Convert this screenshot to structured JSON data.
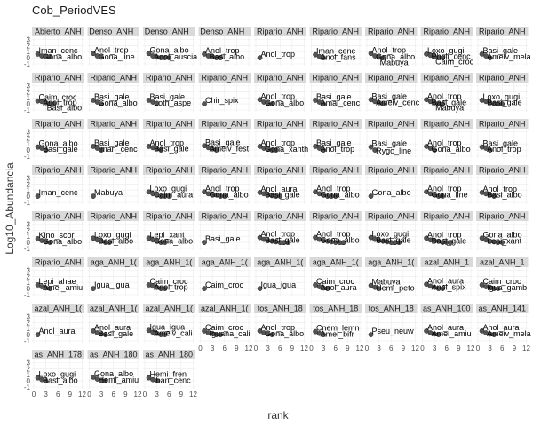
{
  "chart_data": {
    "type": "scatter",
    "title": "Cob_PeriodVES",
    "xlabel": "rank",
    "ylabel": "Log10_Abundancia",
    "x_ticks": [
      0,
      3,
      6,
      9,
      12
    ],
    "y_ticks": [
      -1,
      0,
      1,
      2,
      3
    ],
    "xlim": [
      0,
      12
    ],
    "ylim": [
      -1,
      3.2
    ],
    "point_color": "#555555",
    "strip_fill": "#d9d9d9",
    "panel_fill": "#ffffff",
    "grid": true,
    "panels": [
      {
        "strip": "Abierto_ANH",
        "labels": [
          "Iman_cenc",
          "Gona_albo"
        ],
        "x": [
          1,
          2,
          3,
          4
        ],
        "y": [
          0.6,
          0.3,
          0.2,
          0.2
        ]
      },
      {
        "strip": "Denso_ANH_",
        "labels": [
          "Anol_trop",
          "Gona_line"
        ],
        "x": [
          1,
          2,
          3
        ],
        "y": [
          0.7,
          0.3,
          0.1
        ]
      },
      {
        "strip": "Denso_ANH_",
        "labels": [
          "Gona_albo",
          "Anol_auscia"
        ],
        "x": [
          1,
          2,
          3,
          4,
          5,
          6
        ],
        "y": [
          0.7,
          0.3,
          0.1,
          0,
          0,
          0
        ]
      },
      {
        "strip": "Denso_ANH_",
        "labels": [
          "Anol_trop",
          "Basi_albo"
        ],
        "x": [
          1,
          2,
          3,
          4,
          5
        ],
        "y": [
          0.6,
          0.3,
          0.2,
          0,
          0
        ]
      },
      {
        "strip": "Ripario_ANH",
        "labels": [
          "Anol_trop"
        ],
        "x": [
          1
        ],
        "y": [
          0
        ]
      },
      {
        "strip": "Ripario_ANH",
        "labels": [
          "Iman_cenc",
          "Anol_fans"
        ],
        "x": [
          1,
          2,
          3
        ],
        "y": [
          0.5,
          0.2,
          0
        ]
      },
      {
        "strip": "Ripario_ANH",
        "labels": [
          "Anol_trop",
          "Gona_albo",
          "Mabuya"
        ],
        "x": [
          1,
          2,
          3,
          4
        ],
        "y": [
          0.7,
          0.3,
          0.1,
          0
        ]
      },
      {
        "strip": "Ripario_ANH",
        "labels": [
          "Loxo_gugi",
          "Pholi_cenc",
          "Caim_croc"
        ],
        "x": [
          1,
          2,
          3,
          4,
          5
        ],
        "y": [
          0.6,
          0.4,
          0.2,
          0,
          0
        ]
      },
      {
        "strip": "Ripario_ANH",
        "labels": [
          "Basi_gale",
          "Ameiv_mela"
        ],
        "x": [
          1,
          2,
          3
        ],
        "y": [
          0.6,
          0.3,
          0
        ]
      },
      {
        "strip": "Ripario_ANH",
        "labels": [
          "Caim_croc",
          "Anol_trop",
          "Basi_albo"
        ],
        "x": [
          1,
          2,
          3,
          4,
          5
        ],
        "y": [
          0.5,
          0.4,
          0.2,
          0,
          0
        ]
      },
      {
        "strip": "Ripario_ANH",
        "labels": [
          "Basi_gale",
          "Gona_albo"
        ],
        "x": [
          1,
          2,
          3
        ],
        "y": [
          0.6,
          0.3,
          0
        ]
      },
      {
        "strip": "Ripario_ANH",
        "labels": [
          "Basi_gale",
          "Loth_aspe"
        ],
        "x": [
          1,
          2,
          3
        ],
        "y": [
          0.6,
          0.3,
          0.1
        ]
      },
      {
        "strip": "Ripario_ANH",
        "labels": [
          "Chir_spix"
        ],
        "x": [
          1
        ],
        "y": [
          0
        ]
      },
      {
        "strip": "Ripario_ANH",
        "labels": [
          "Anol_trop",
          "Gona_albo"
        ],
        "x": [
          1,
          2,
          3,
          4
        ],
        "y": [
          0.7,
          0.3,
          0.1,
          0
        ]
      },
      {
        "strip": "Ripario_ANH",
        "labels": [
          "Basi_gale",
          "Amal_cenc"
        ],
        "x": [
          1,
          2,
          3
        ],
        "y": [
          0.6,
          0.3,
          0
        ]
      },
      {
        "strip": "Ripario_ANH",
        "labels": [
          "Basi_gale",
          "Ameiv_cenc"
        ],
        "x": [
          1,
          2,
          3,
          4
        ],
        "y": [
          0.7,
          0.4,
          0.2,
          0
        ]
      },
      {
        "strip": "Ripario_ANH",
        "labels": [
          "Anol_trop",
          "Basi_gale",
          "Mabuya"
        ],
        "x": [
          1,
          2,
          3,
          4,
          5
        ],
        "y": [
          0.7,
          0.4,
          0.2,
          0,
          0
        ]
      },
      {
        "strip": "Ripario_ANH",
        "labels": [
          "Loxo_gugi",
          "Basi_gale"
        ],
        "x": [
          1,
          2,
          3,
          4,
          5,
          6
        ],
        "y": [
          0.6,
          0.4,
          0.2,
          0,
          0,
          0
        ]
      },
      {
        "strip": "Ripario_ANH",
        "labels": [
          "Gona_albo",
          "Basi_gale"
        ],
        "x": [
          1,
          2,
          3
        ],
        "y": [
          0.5,
          0.3,
          0
        ]
      },
      {
        "strip": "Ripario_ANH",
        "labels": [
          "Basi_gale",
          "Iman_cenc"
        ],
        "x": [
          1,
          2,
          3
        ],
        "y": [
          0.6,
          0.3,
          0
        ]
      },
      {
        "strip": "Ripario_ANH",
        "labels": [
          "Anol_trop",
          "Basi_gale"
        ],
        "x": [
          1,
          2,
          3,
          4
        ],
        "y": [
          0.6,
          0.4,
          0.2,
          0
        ]
      },
      {
        "strip": "Ripario_ANH",
        "labels": [
          "Basi_gale",
          "Ameiv_fest"
        ],
        "x": [
          1,
          2,
          3,
          4
        ],
        "y": [
          0.7,
          0.4,
          0.2,
          0
        ]
      },
      {
        "strip": "Ripario_ANH",
        "labels": [
          "Anol_trop",
          "Gona_xanth"
        ],
        "x": [
          1,
          2,
          3,
          4,
          5
        ],
        "y": [
          0.6,
          0.3,
          0.2,
          0,
          0
        ]
      },
      {
        "strip": "Ripario_ANH",
        "labels": [
          "Basi_gale",
          "Anol_trop"
        ],
        "x": [
          1,
          2,
          3
        ],
        "y": [
          0.6,
          0.3,
          0
        ]
      },
      {
        "strip": "Ripario_ANH",
        "labels": [
          "Basi_gale",
          "Rygo_line"
        ],
        "x": [
          1,
          2
        ],
        "y": [
          0.5,
          0
        ]
      },
      {
        "strip": "Ripario_ANH",
        "labels": [
          "Anol_trop",
          "Gona_albo"
        ],
        "x": [
          1,
          2,
          3
        ],
        "y": [
          0.6,
          0.3,
          0
        ]
      },
      {
        "strip": "Ripario_ANH",
        "labels": [
          "Basi_gale",
          "Anol_trop"
        ],
        "x": [
          1,
          2,
          3
        ],
        "y": [
          0.5,
          0.3,
          0
        ]
      },
      {
        "strip": "Ripario_ANH",
        "labels": [
          "Iman_cenc"
        ],
        "x": [
          1
        ],
        "y": [
          0
        ]
      },
      {
        "strip": "Ripario_ANH",
        "labels": [
          "Mabuya"
        ],
        "x": [
          1
        ],
        "y": [
          0
        ]
      },
      {
        "strip": "Ripario_ANH",
        "labels": [
          "Loxo_gugi",
          "Caim_aura"
        ],
        "x": [
          1,
          2,
          3,
          4,
          5,
          6
        ],
        "y": [
          0.7,
          0.4,
          0.2,
          0,
          0,
          0
        ]
      },
      {
        "strip": "Ripario_ANH",
        "labels": [
          "Anol_trop",
          "Gona_albo"
        ],
        "x": [
          1,
          2,
          3,
          4,
          5,
          6
        ],
        "y": [
          0.7,
          0.4,
          0.3,
          0.2,
          0,
          0
        ]
      },
      {
        "strip": "Ripario_ANH",
        "labels": [
          "Anol_aura",
          "Basi_gale"
        ],
        "x": [
          1,
          2,
          3,
          4,
          5,
          6
        ],
        "y": [
          0.6,
          0.4,
          0.2,
          0.1,
          0,
          0
        ]
      },
      {
        "strip": "Ripario_ANH",
        "labels": [
          "Anol_trop",
          "Gona_albo"
        ],
        "x": [
          1,
          2,
          3,
          4,
          5,
          6
        ],
        "y": [
          0.7,
          0.4,
          0.2,
          0,
          0,
          0
        ]
      },
      {
        "strip": "Ripario_ANH",
        "labels": [
          "Gona_albo"
        ],
        "x": [
          1
        ],
        "y": [
          0
        ]
      },
      {
        "strip": "Ripario_ANH",
        "labels": [
          "Anol_trop",
          "Gona_line"
        ],
        "x": [
          1,
          2,
          3,
          4,
          5
        ],
        "y": [
          0.7,
          0.4,
          0.2,
          0,
          0
        ]
      },
      {
        "strip": "Ripario_ANH",
        "labels": [
          "Anol_trop",
          "Basi_albo"
        ],
        "x": [
          1,
          2,
          3,
          4
        ],
        "y": [
          0.6,
          0.4,
          0.2,
          0
        ]
      },
      {
        "strip": "Ripario_ANH",
        "labels": [
          "Kino_scor",
          "Gona_albo"
        ],
        "x": [
          1,
          2,
          3,
          4
        ],
        "y": [
          0.6,
          0.3,
          0.1,
          0
        ]
      },
      {
        "strip": "Ripario_ANH",
        "labels": [
          "Loxo_gugi",
          "Basi_albo"
        ],
        "x": [
          1,
          2,
          3,
          4,
          5
        ],
        "y": [
          0.7,
          0.4,
          0.2,
          0,
          0
        ]
      },
      {
        "strip": "Ripario_ANH",
        "labels": [
          "Lepi_xant",
          "Gona_albo"
        ],
        "x": [
          1,
          2,
          3,
          4,
          5
        ],
        "y": [
          0.7,
          0.4,
          0.2,
          0,
          0
        ]
      },
      {
        "strip": "Ripario_ANH",
        "labels": [
          "Basi_gale"
        ],
        "x": [
          1
        ],
        "y": [
          0
        ]
      },
      {
        "strip": "Ripario_ANH",
        "labels": [
          "Anol_trop",
          "Basi_gale"
        ],
        "x": [
          1,
          2,
          3,
          4,
          5,
          6,
          7,
          8
        ],
        "y": [
          0.8,
          0.5,
          0.3,
          0.2,
          0.1,
          0,
          0,
          0
        ]
      },
      {
        "strip": "Ripario_ANH",
        "labels": [
          "Anol_trop",
          "Gona_albo"
        ],
        "x": [
          1,
          2,
          3,
          4,
          5,
          6,
          7,
          8
        ],
        "y": [
          0.8,
          0.5,
          0.3,
          0.2,
          0.1,
          0,
          0,
          0
        ]
      },
      {
        "strip": "Ripario_ANH",
        "labels": [
          "Loxo_gugi",
          "Basi_gale"
        ],
        "x": [
          1,
          2,
          3,
          4,
          5,
          6,
          7,
          8
        ],
        "y": [
          0.8,
          0.5,
          0.3,
          0.2,
          0.1,
          0,
          0,
          0
        ]
      },
      {
        "strip": "Ripario_ANH",
        "labels": [
          "Anol_trop",
          "Basi_gale"
        ],
        "x": [
          1,
          2,
          3,
          4,
          5,
          6,
          7
        ],
        "y": [
          0.7,
          0.4,
          0.3,
          0.2,
          0,
          0,
          0
        ]
      },
      {
        "strip": "Ripario_ANH",
        "labels": [
          "Gona_albo",
          "Lepi_xant"
        ],
        "x": [
          1,
          2,
          3,
          4,
          5,
          6
        ],
        "y": [
          0.7,
          0.4,
          0.2,
          0.1,
          0,
          0
        ]
      },
      {
        "strip": "Ripario_ANH",
        "labels": [
          "Lepi_ahae",
          "Amei_amiu"
        ],
        "x": [
          1,
          2,
          3,
          4
        ],
        "y": [
          0.6,
          0.3,
          0.1,
          0
        ]
      },
      {
        "strip": "aga_ANH_1(",
        "labels": [
          "Igua_igua"
        ],
        "x": [
          1
        ],
        "y": [
          0
        ]
      },
      {
        "strip": "aga_ANH_1(",
        "labels": [
          "Caim_croc",
          "Anol_trop"
        ],
        "x": [
          1,
          2,
          3,
          4,
          5
        ],
        "y": [
          0.6,
          0.4,
          0.2,
          0,
          0
        ]
      },
      {
        "strip": "aga_ANH_1(",
        "labels": [
          "Caim_croc"
        ],
        "x": [
          1
        ],
        "y": [
          0
        ]
      },
      {
        "strip": "aga_ANH_1(",
        "labels": [
          "Igua_igua"
        ],
        "x": [
          1
        ],
        "y": [
          0
        ]
      },
      {
        "strip": "aga_ANH_1(",
        "labels": [
          "Caim_croc",
          "Anol_aura"
        ],
        "x": [
          1,
          2,
          3,
          4
        ],
        "y": [
          0.6,
          0.3,
          0.1,
          0
        ]
      },
      {
        "strip": "aga_ANH_1(",
        "labels": [
          "Mabuya",
          "Hemi_peto"
        ],
        "x": [
          1,
          2,
          3
        ],
        "y": [
          0.5,
          0.2,
          0
        ]
      },
      {
        "strip": "azal_ANH_1",
        "labels": [
          "Anol_aura",
          "Anol_spix"
        ],
        "x": [
          1,
          2,
          3,
          4,
          5
        ],
        "y": [
          0.7,
          0.4,
          0.2,
          0,
          0
        ]
      },
      {
        "strip": "azal_ANH_1",
        "labels": [
          "Caim_croc",
          "Igua_gamb"
        ],
        "x": [
          1,
          2,
          3,
          4,
          5
        ],
        "y": [
          0.6,
          0.3,
          0.2,
          0,
          0
        ]
      },
      {
        "strip": "azal_ANH_1(",
        "labels": [
          "Anol_aura"
        ],
        "x": [
          1
        ],
        "y": [
          0
        ]
      },
      {
        "strip": "azal_ANH_1(",
        "labels": [
          "Anol_aura",
          "Basi_gale"
        ],
        "x": [
          1,
          2,
          3,
          4
        ],
        "y": [
          0.6,
          0.3,
          0.1,
          0
        ]
      },
      {
        "strip": "azal_ANH_1(",
        "labels": [
          "Igua_igua",
          "Ameiv_cali"
        ],
        "x": [
          1,
          2,
          3,
          4,
          5
        ],
        "y": [
          0.7,
          0.4,
          0.2,
          0,
          0
        ]
      },
      {
        "strip": "azal_ANH_1(",
        "labels": [
          "Caim_croc",
          "Iguana_cali"
        ],
        "x": [
          1,
          2,
          3,
          4,
          5
        ],
        "y": [
          0.6,
          0.3,
          0.2,
          0,
          0
        ]
      },
      {
        "strip": "tos_ANH_18",
        "labels": [
          "Anol_trop",
          "Gona_albo"
        ],
        "x": [
          1,
          2,
          3,
          4
        ],
        "y": [
          0.6,
          0.3,
          0.1,
          0
        ]
      },
      {
        "strip": "tos_ANH_18",
        "labels": [
          "Cnem_lemn",
          "Amei_bifr"
        ],
        "x": [
          1,
          2,
          3
        ],
        "y": [
          0.5,
          0.2,
          0
        ]
      },
      {
        "strip": "tos_ANH_18",
        "labels": [
          "Pseu_neuw"
        ],
        "x": [
          1
        ],
        "y": [
          0
        ]
      },
      {
        "strip": "as_ANH_100",
        "labels": [
          "Anol_aura",
          "Amei_amiu"
        ],
        "x": [
          1,
          2,
          3,
          4
        ],
        "y": [
          0.6,
          0.3,
          0.1,
          0
        ]
      },
      {
        "strip": "as_ANH_141",
        "labels": [
          "Anol_aura",
          "Ameiv_mela"
        ],
        "x": [
          1,
          2,
          3,
          4
        ],
        "y": [
          0.6,
          0.3,
          0.1,
          0
        ]
      },
      {
        "strip": "as_ANH_178",
        "labels": [
          "Loxo_gugi",
          "Basi_albo"
        ],
        "x": [
          1,
          2,
          3
        ],
        "y": [
          0.5,
          0.2,
          0
        ]
      },
      {
        "strip": "as_ANH_180",
        "labels": [
          "Gona_albo",
          "Hemi_amiu"
        ],
        "x": [
          1,
          2,
          3,
          4
        ],
        "y": [
          0.6,
          0.3,
          0.1,
          0
        ]
      },
      {
        "strip": "as_ANH_180",
        "labels": [
          "Hemi_fren",
          "Iban_cenc"
        ],
        "x": [
          1,
          2,
          3
        ],
        "y": [
          0.5,
          0.2,
          0
        ]
      }
    ]
  }
}
